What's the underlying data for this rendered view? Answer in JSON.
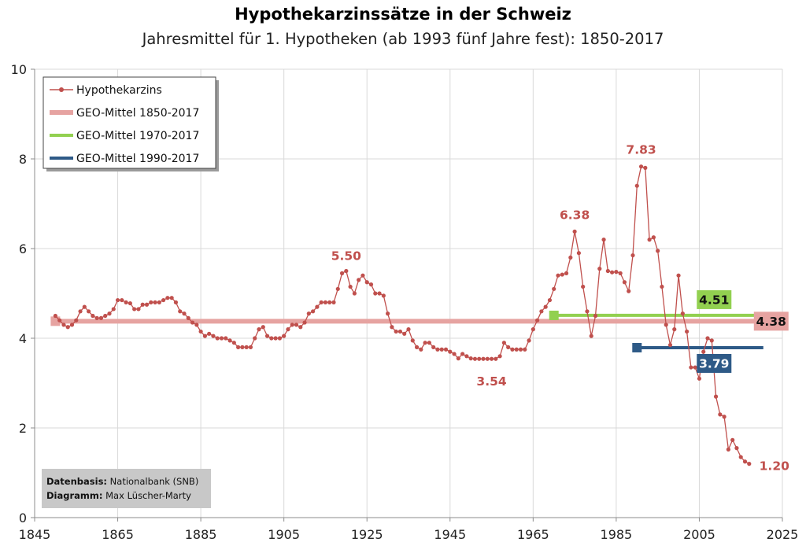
{
  "chart_data": {
    "type": "line",
    "title": "Hypothekarzinssätze in der Schweiz",
    "subtitle": "Jahresmittel für 1. Hypotheken (ab 1993 fünf Jahre fest): 1850-2017",
    "xlim": [
      1845,
      2025
    ],
    "ylim": [
      0,
      10
    ],
    "x_ticks": [
      1845,
      1865,
      1885,
      1905,
      1925,
      1945,
      1965,
      1985,
      2005,
      2025
    ],
    "y_ticks": [
      0,
      2,
      4,
      6,
      8,
      10
    ],
    "grid": true,
    "legend_position": "top-left",
    "series": [
      {
        "name": "Hypothekarzins",
        "color": "#c0504d",
        "marker": "circle",
        "x_start": 1850,
        "values": [
          4.5,
          4.4,
          4.3,
          4.25,
          4.3,
          4.4,
          4.6,
          4.7,
          4.6,
          4.5,
          4.45,
          4.45,
          4.5,
          4.55,
          4.65,
          4.85,
          4.85,
          4.8,
          4.78,
          4.65,
          4.65,
          4.75,
          4.75,
          4.8,
          4.8,
          4.8,
          4.85,
          4.9,
          4.9,
          4.8,
          4.6,
          4.55,
          4.45,
          4.35,
          4.3,
          4.15,
          4.05,
          4.1,
          4.05,
          4.0,
          4.0,
          4.0,
          3.95,
          3.9,
          3.8,
          3.8,
          3.8,
          3.8,
          4.0,
          4.2,
          4.25,
          4.05,
          4.0,
          4.0,
          4.0,
          4.05,
          4.2,
          4.3,
          4.3,
          4.25,
          4.35,
          4.55,
          4.6,
          4.7,
          4.8,
          4.8,
          4.8,
          4.8,
          5.1,
          5.45,
          5.5,
          5.15,
          5.0,
          5.3,
          5.4,
          5.25,
          5.2,
          5.0,
          5.0,
          4.95,
          4.55,
          4.25,
          4.15,
          4.15,
          4.1,
          4.2,
          3.95,
          3.8,
          3.75,
          3.9,
          3.9,
          3.8,
          3.75,
          3.75,
          3.75,
          3.7,
          3.65,
          3.55,
          3.65,
          3.6,
          3.55,
          3.54,
          3.54,
          3.54,
          3.54,
          3.54,
          3.54,
          3.6,
          3.9,
          3.8,
          3.75,
          3.75,
          3.75,
          3.75,
          3.95,
          4.2,
          4.4,
          4.6,
          4.7,
          4.85,
          5.1,
          5.4,
          5.42,
          5.45,
          5.8,
          6.38,
          5.9,
          5.15,
          4.6,
          4.05,
          4.5,
          5.55,
          6.2,
          5.5,
          5.47,
          5.48,
          5.45,
          5.25,
          5.05,
          5.85,
          7.4,
          7.83,
          7.8,
          6.2,
          6.25,
          5.95,
          5.15,
          4.3,
          3.85,
          4.2,
          5.4,
          4.55,
          4.15,
          3.35,
          3.35,
          3.1,
          3.7,
          4.0,
          3.95,
          2.7,
          2.3,
          2.25,
          1.52,
          1.73,
          1.55,
          1.35,
          1.25,
          1.2
        ]
      },
      {
        "name": "GEO-Mittel 1850-2017",
        "color": "#e6a3a1",
        "value": 4.38,
        "from": 1850,
        "to": 2017
      },
      {
        "name": "GEO-Mittel 1970-2017",
        "color": "#92d050",
        "value": 4.51,
        "from": 1970,
        "to": 2017
      },
      {
        "name": "GEO-Mittel 1990-2017",
        "color": "#2e5a87",
        "value": 3.79,
        "from": 1990,
        "to": 2017
      }
    ],
    "annotations": [
      {
        "text": "5.50",
        "x": 1920,
        "y": 5.5
      },
      {
        "text": "3.54",
        "x": 1955,
        "y": 3.54
      },
      {
        "text": "6.38",
        "x": 1975,
        "y": 6.38
      },
      {
        "text": "7.83",
        "x": 1991,
        "y": 7.83
      },
      {
        "text": "1.20",
        "x": 2017,
        "y": 1.2
      }
    ],
    "mean_labels": [
      "4.51",
      "4.38",
      "3.79"
    ],
    "source": {
      "line1_label": "Datenbasis:",
      "line1_value": " Nationalbank (SNB)",
      "line2_label": "Diagramm:",
      "line2_value": " Max Lüscher-Marty"
    }
  }
}
